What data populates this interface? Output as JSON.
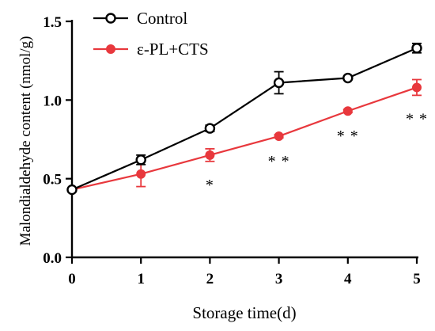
{
  "chart_data": {
    "type": "line",
    "xlabel": "Storage time(d)",
    "ylabel": "Malondialdehyde content (nmol/g)",
    "xlim": [
      0,
      5
    ],
    "ylim": [
      0.0,
      1.5
    ],
    "x_ticks": [
      "0",
      "1",
      "2",
      "3",
      "4",
      "5"
    ],
    "y_ticks": [
      "0.0",
      "0.5",
      "1.0",
      "1.5"
    ],
    "x": [
      0,
      1,
      2,
      3,
      4,
      5
    ],
    "legend_position": "top-left",
    "grid": false,
    "series": [
      {
        "name": "Control",
        "color": "#000000",
        "marker": "open-circle",
        "values": [
          0.43,
          0.62,
          0.82,
          1.11,
          1.14,
          1.33
        ],
        "errors": [
          0.01,
          0.03,
          0.02,
          0.07,
          0.01,
          0.03
        ]
      },
      {
        "name": "ε-PL+CTS",
        "color": "#e8383d",
        "marker": "filled-circle",
        "values": [
          0.43,
          0.53,
          0.65,
          0.77,
          0.93,
          1.08
        ],
        "errors": [
          0.01,
          0.08,
          0.04,
          0.01,
          0.01,
          0.05
        ]
      }
    ],
    "annotations": [
      {
        "x": 2,
        "text": "*"
      },
      {
        "x": 3,
        "text": "* *"
      },
      {
        "x": 4,
        "text": "* *"
      },
      {
        "x": 5,
        "text": "* *"
      }
    ]
  }
}
